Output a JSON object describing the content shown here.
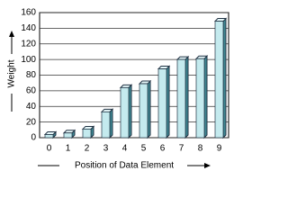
{
  "chart_data": {
    "type": "bar",
    "x_label": "Position of Data Element",
    "y_label": "Weight",
    "categories": [
      "0",
      "1",
      "2",
      "3",
      "4",
      "5",
      "6",
      "7",
      "8",
      "9"
    ],
    "values": [
      4,
      6,
      11,
      33,
      64,
      69,
      88,
      100,
      101,
      149
    ],
    "color": "#c4eaee",
    "ylim": [
      0,
      160
    ],
    "yticks": [
      0,
      20,
      40,
      60,
      80,
      100,
      120,
      140,
      160
    ],
    "grid": true
  }
}
